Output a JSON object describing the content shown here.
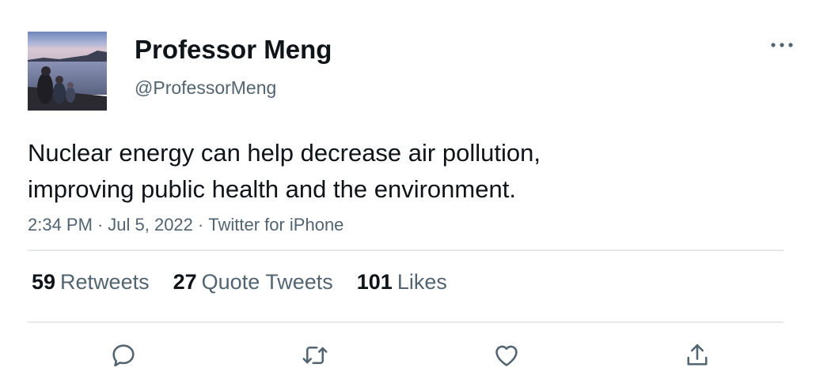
{
  "author": {
    "display_name": "Professor Meng",
    "handle": "@ProfessorMeng"
  },
  "tweet": {
    "text_lines": [
      "Nuclear energy can help decrease air pollution,",
      "improving public health and the environment."
    ],
    "time": "2:34 PM",
    "date": "Jul 5, 2022",
    "separator": "·",
    "source": "Twitter for iPhone"
  },
  "stats": {
    "retweets": {
      "count": "59",
      "label": "Retweets"
    },
    "quote_tweets": {
      "count": "27",
      "label": "Quote Tweets"
    },
    "likes": {
      "count": "101",
      "label": "Likes"
    }
  },
  "icons": {
    "more": "more-horizontal-icon",
    "reply": "reply-icon",
    "retweet": "retweet-icon",
    "like": "heart-icon",
    "share": "share-icon"
  },
  "colors": {
    "text_primary": "#0f1419",
    "text_secondary": "#536471",
    "divider": "#e6e9eb"
  }
}
